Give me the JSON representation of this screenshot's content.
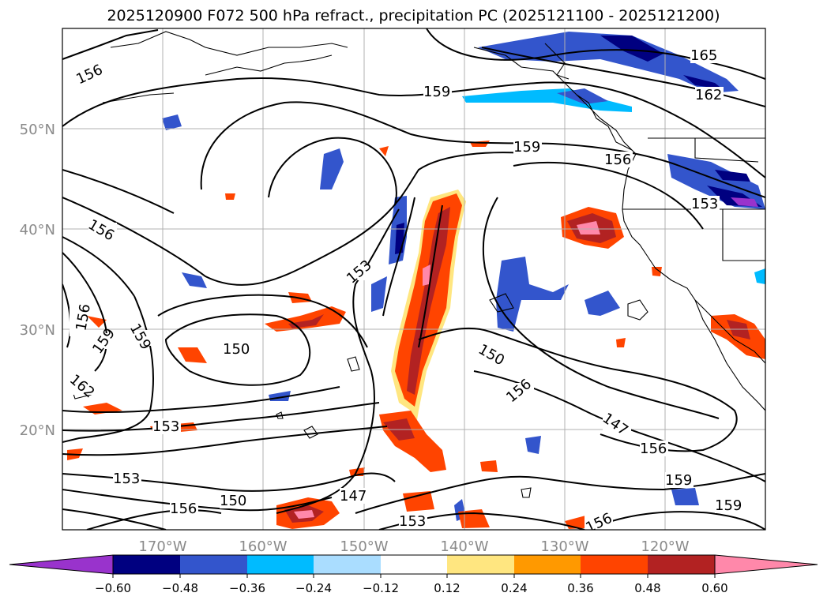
{
  "title": "2025120900 F072 500 hPa refract., precipitation PC (2025121100 - 2025121200)",
  "map": {
    "lat_ticks": [
      "50°N",
      "40°N",
      "30°N",
      "20°N"
    ],
    "lon_ticks": [
      "170°W",
      "160°W",
      "150°W",
      "140°W",
      "130°W",
      "120°W"
    ]
  },
  "contour_labels": [
    "156",
    "159",
    "165",
    "162",
    "156",
    "159",
    "153",
    "156",
    "153",
    "150",
    "150",
    "156",
    "147",
    "156",
    "159",
    "159",
    "156",
    "153",
    "153",
    "150",
    "156",
    "147",
    "153",
    "156",
    "159",
    "159",
    "162"
  ],
  "colorbar": {
    "ticks": [
      "−0.60",
      "−0.48",
      "−0.36",
      "−0.24",
      "−0.12",
      "0.12",
      "0.24",
      "0.36",
      "0.48",
      "0.60"
    ],
    "colors": [
      "#9933cc",
      "#000080",
      "#3355cc",
      "#00bbff",
      "#aaddff",
      "#ffffff",
      "#ffe680",
      "#ff9900",
      "#ff4400",
      "#b22222",
      "#ff88aa"
    ]
  },
  "icons": {
    "coastline": "coastline-shape"
  }
}
